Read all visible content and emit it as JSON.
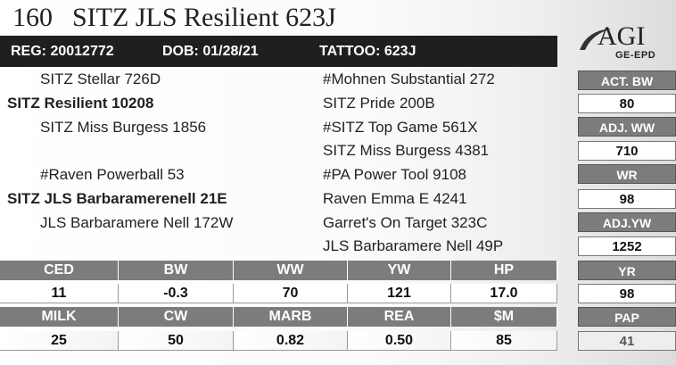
{
  "header": {
    "lot": "160",
    "name": "SITZ JLS Resilient 623J"
  },
  "regbar": {
    "reg": "REG: 20012772",
    "dob": "DOB: 01/28/21",
    "tattoo": "TATTOO: 623J"
  },
  "logo": {
    "text": "AGI",
    "sub": "GE-EPD"
  },
  "pedigree": {
    "sire_sire": "SITZ Stellar 726D",
    "sire": "SITZ Resilient 10208",
    "sire_dam": "SITZ Miss Burgess 1856",
    "dam_sire": "#Raven Powerball 53",
    "dam": "SITZ JLS Barbaramerenell 21E",
    "dam_dam": "JLS Barbaramere Nell 172W",
    "sss": "#Mohnen Substantial 272",
    "ssd": "SITZ Pride 200B",
    "sds": "#SITZ Top Game 561X",
    "sdd": "SITZ Miss Burgess 4381",
    "dss": "#PA Power Tool 9108",
    "dsd": "Raven Emma E 4241",
    "dds": "Garret's On Target 323C",
    "ddd": "JLS Barbaramere Nell 49P"
  },
  "right": [
    {
      "label": "ACT. BW",
      "value": "80"
    },
    {
      "label": "ADJ. WW",
      "value": "710"
    },
    {
      "label": "WR",
      "value": "98"
    },
    {
      "label": "ADJ.YW",
      "value": "1252"
    },
    {
      "label": "YR",
      "value": "98"
    },
    {
      "label": "PAP",
      "value": "41"
    }
  ],
  "epd_row1": {
    "labels": [
      "CED",
      "BW",
      "WW",
      "YW",
      "HP"
    ],
    "values": [
      "11",
      "-0.3",
      "70",
      "121",
      "17.0"
    ]
  },
  "epd_row2": {
    "labels": [
      "MILK",
      "CW",
      "MARB",
      "REA",
      "$M"
    ],
    "values": [
      "25",
      "50",
      "0.82",
      "0.50",
      "85"
    ]
  }
}
